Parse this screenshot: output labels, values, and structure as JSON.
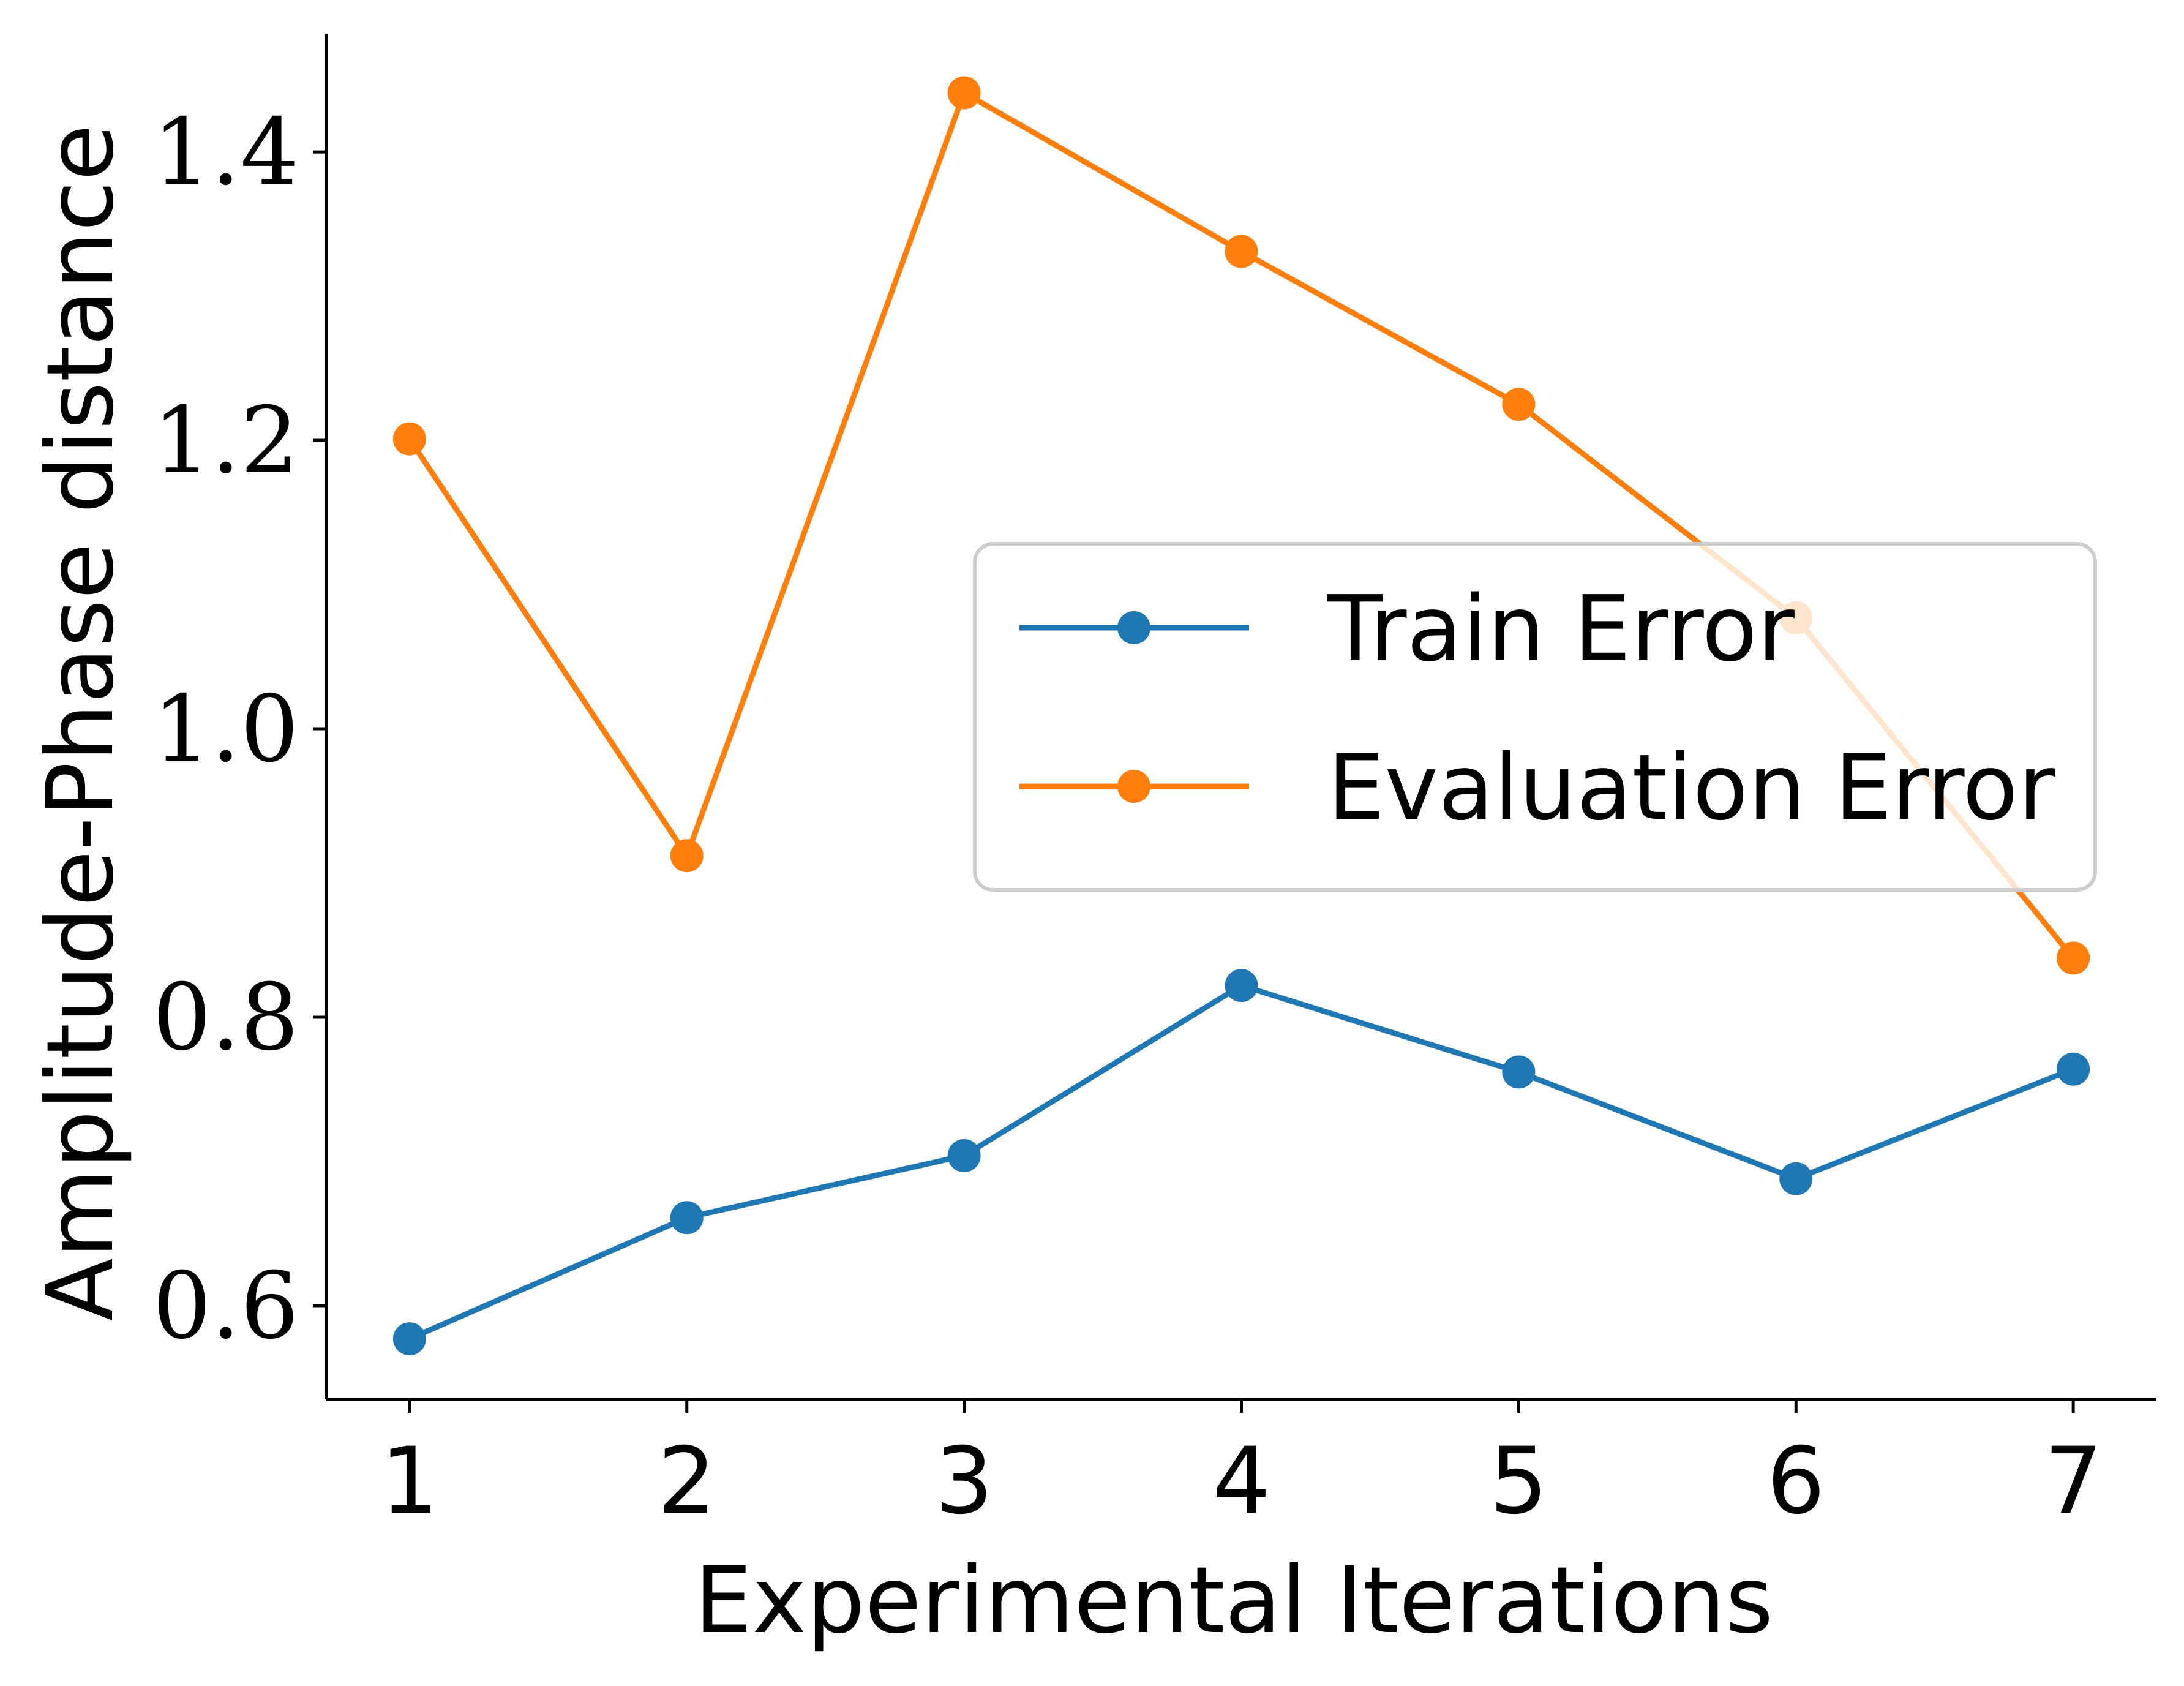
{
  "chart_data": {
    "type": "line",
    "title": "",
    "xlabel": "Experimental Iterations",
    "ylabel": "Amplitude-Phase distance",
    "x": [
      1,
      2,
      3,
      4,
      5,
      6,
      7
    ],
    "x_ticks": [
      "1",
      "2",
      "3",
      "4",
      "5",
      "6",
      "7"
    ],
    "xlim": [
      0.7,
      7.3
    ],
    "ylim": [
      0.535,
      1.482
    ],
    "y_ticks": [
      "0.6",
      "0.8",
      "1.0",
      "1.2",
      "1.4"
    ],
    "grid": false,
    "legend_position": "center-right",
    "series": [
      {
        "name": "Train Error",
        "color": "#1f77b4",
        "marker": "circle",
        "values": [
          0.577,
          0.661,
          0.704,
          0.822,
          0.762,
          0.688,
          0.764
        ]
      },
      {
        "name": "Evaluation Error",
        "color": "#ff7f0e",
        "marker": "circle",
        "values": [
          1.201,
          0.912,
          1.441,
          1.331,
          1.225,
          1.077,
          0.841
        ]
      }
    ]
  }
}
